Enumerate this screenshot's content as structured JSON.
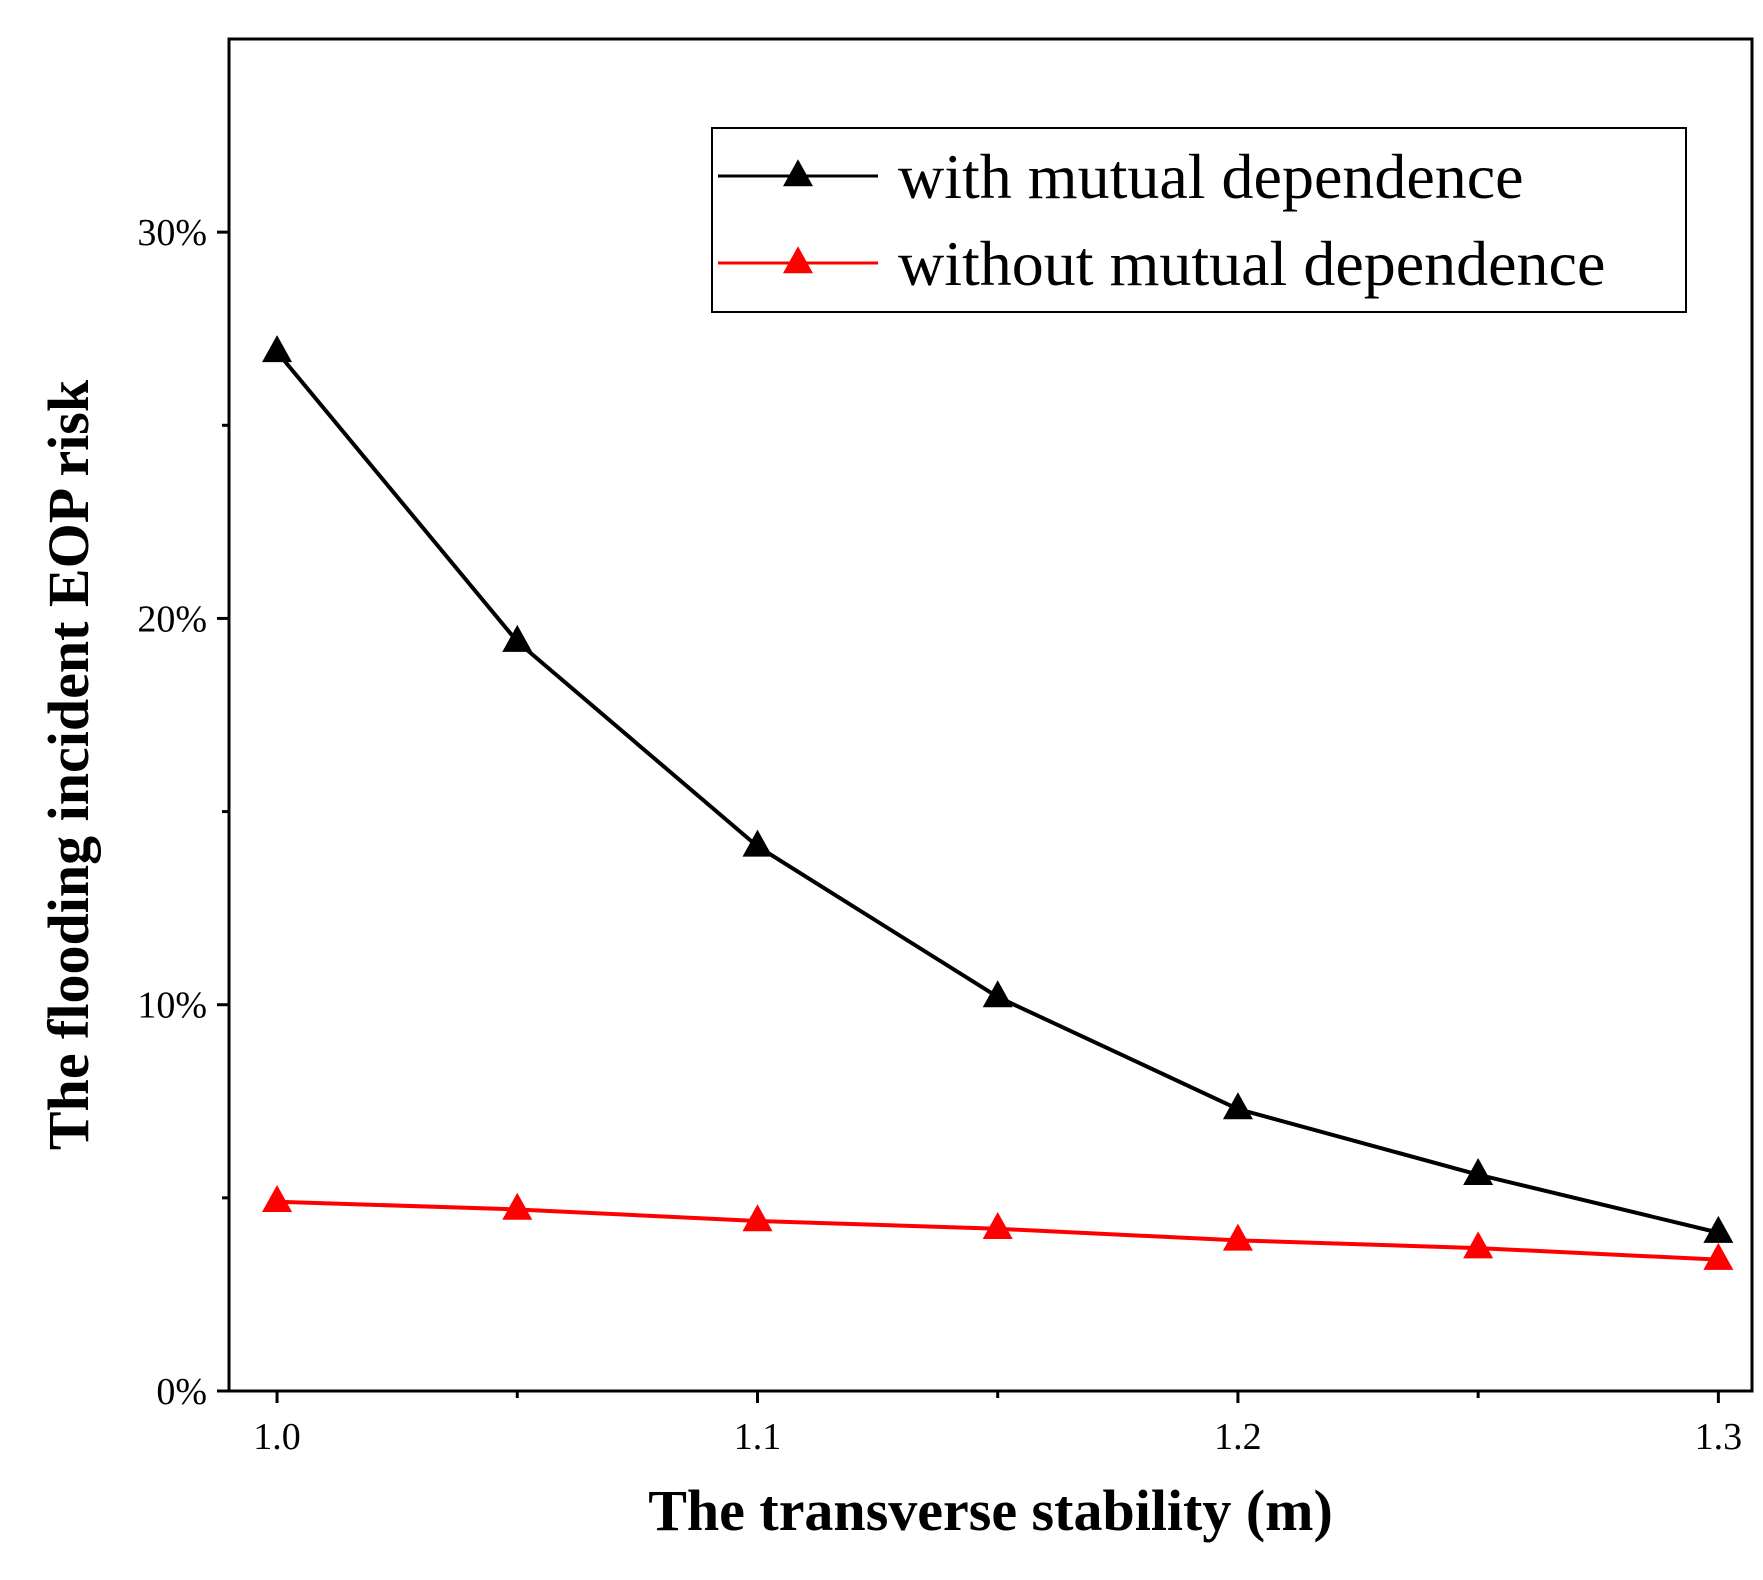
{
  "chart_data": {
    "type": "line",
    "title": "",
    "xlabel": "The transverse stability (m)",
    "ylabel": "The flooding incident EOP risk",
    "x": [
      1.0,
      1.05,
      1.1,
      1.15,
      1.2,
      1.25,
      1.3
    ],
    "xlim": [
      0.99,
      1.307
    ],
    "ylim": [
      0,
      35
    ],
    "xticks": [
      1.0,
      1.05,
      1.1,
      1.15,
      1.2,
      1.25,
      1.3
    ],
    "xtick_labels": [
      "1.0",
      "",
      "1.1",
      "",
      "1.2",
      "",
      "1.3"
    ],
    "yticks": [
      0,
      10,
      20,
      30
    ],
    "ytick_labels": [
      "0%",
      "10%",
      "20%",
      "30%"
    ],
    "series": [
      {
        "name": "with mutual dependence",
        "color": "#000000",
        "marker": "triangle",
        "values": [
          26.9,
          19.4,
          14.1,
          10.2,
          7.3,
          5.6,
          4.1
        ]
      },
      {
        "name": "without mutual dependence",
        "color": "#ff0000",
        "marker": "triangle",
        "values": [
          4.9,
          4.7,
          4.4,
          4.2,
          3.9,
          3.7,
          3.4
        ]
      }
    ],
    "legend_position": "top-right",
    "grid": false
  }
}
